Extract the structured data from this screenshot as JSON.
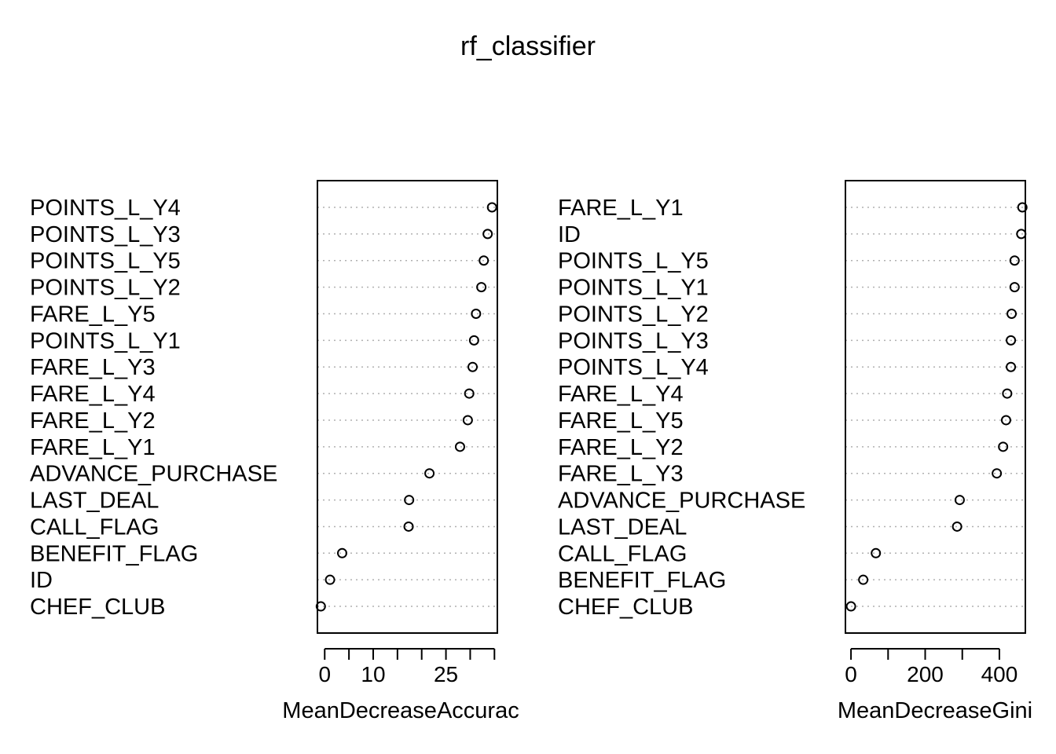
{
  "title": "rf_classifier",
  "chart_data": [
    {
      "type": "scatter",
      "subtype": "dotchart",
      "xlabel": "MeanDecreaseAccurac",
      "xlim": [
        -1.5,
        35.6
      ],
      "xticks": [
        0,
        5,
        10,
        15,
        20,
        25,
        30,
        35
      ],
      "xtick_labels": [
        "0",
        "",
        "10",
        "",
        "",
        "25",
        "",
        ""
      ],
      "grid": "dotted horizontal lines per item",
      "categories": [
        "POINTS_L_Y4",
        "POINTS_L_Y3",
        "POINTS_L_Y5",
        "POINTS_L_Y2",
        "FARE_L_Y5",
        "POINTS_L_Y1",
        "FARE_L_Y3",
        "FARE_L_Y4",
        "FARE_L_Y2",
        "FARE_L_Y1",
        "ADVANCE_PURCHASE",
        "LAST_DEAL",
        "CALL_FLAG",
        "BENEFIT_FLAG",
        "ID",
        "CHEF_CLUB"
      ],
      "values": [
        34.5,
        33.6,
        32.8,
        32.3,
        31.2,
        30.8,
        30.5,
        29.8,
        29.5,
        27.9,
        21.6,
        17.4,
        17.3,
        3.6,
        1.1,
        -0.8
      ]
    },
    {
      "type": "scatter",
      "subtype": "dotchart",
      "xlabel": "MeanDecreaseGini",
      "xlim": [
        -15,
        470
      ],
      "xticks": [
        0,
        100,
        200,
        300,
        400
      ],
      "xtick_labels": [
        "0",
        "",
        "200",
        "",
        "400"
      ],
      "grid": "dotted horizontal lines per item",
      "categories": [
        "FARE_L_Y1",
        "ID",
        "POINTS_L_Y5",
        "POINTS_L_Y1",
        "POINTS_L_Y2",
        "POINTS_L_Y3",
        "POINTS_L_Y4",
        "FARE_L_Y4",
        "FARE_L_Y5",
        "FARE_L_Y2",
        "FARE_L_Y3",
        "ADVANCE_PURCHASE",
        "LAST_DEAL",
        "CALL_FLAG",
        "BENEFIT_FLAG",
        "CHEF_CLUB"
      ],
      "values": [
        462,
        459,
        441,
        441,
        433,
        431,
        431,
        421,
        418,
        410,
        393,
        293,
        286,
        67,
        33,
        0
      ]
    }
  ]
}
